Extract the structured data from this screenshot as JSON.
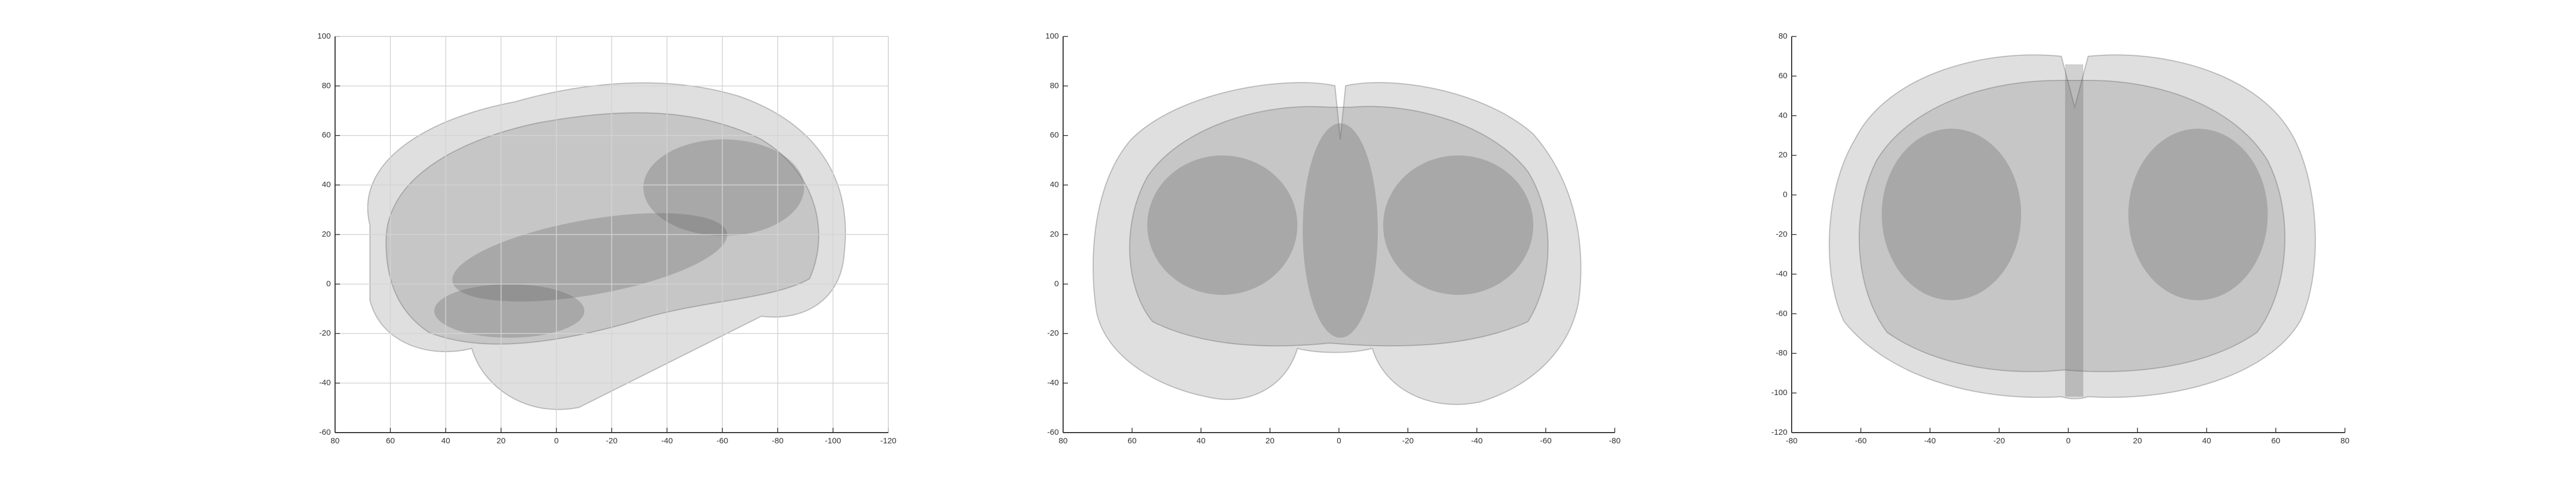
{
  "panels": [
    {
      "xlim": [
        80,
        -120
      ],
      "xticks": [
        80,
        60,
        40,
        20,
        0,
        -20,
        -40,
        -60,
        -80,
        -100,
        -120
      ],
      "ylim": [
        -60,
        100
      ],
      "yticks": [
        -60,
        -40,
        -20,
        0,
        20,
        40,
        60,
        80,
        100
      ],
      "grid": true
    },
    {
      "xlim": [
        80,
        -80
      ],
      "xticks": [
        80,
        60,
        40,
        20,
        0,
        -20,
        -40,
        -60,
        -80
      ],
      "ylim": [
        -60,
        100
      ],
      "yticks": [
        -60,
        -40,
        -20,
        0,
        20,
        40,
        60,
        80,
        100
      ],
      "grid": false
    },
    {
      "xlim": [
        -80,
        80
      ],
      "xticks": [
        -80,
        -60,
        -40,
        -20,
        0,
        20,
        40,
        60,
        80
      ],
      "ylim": [
        -120,
        80
      ],
      "yticks": [
        -120,
        -100,
        -80,
        -60,
        -40,
        -20,
        0,
        20,
        40,
        60,
        80
      ],
      "grid": false
    }
  ]
}
